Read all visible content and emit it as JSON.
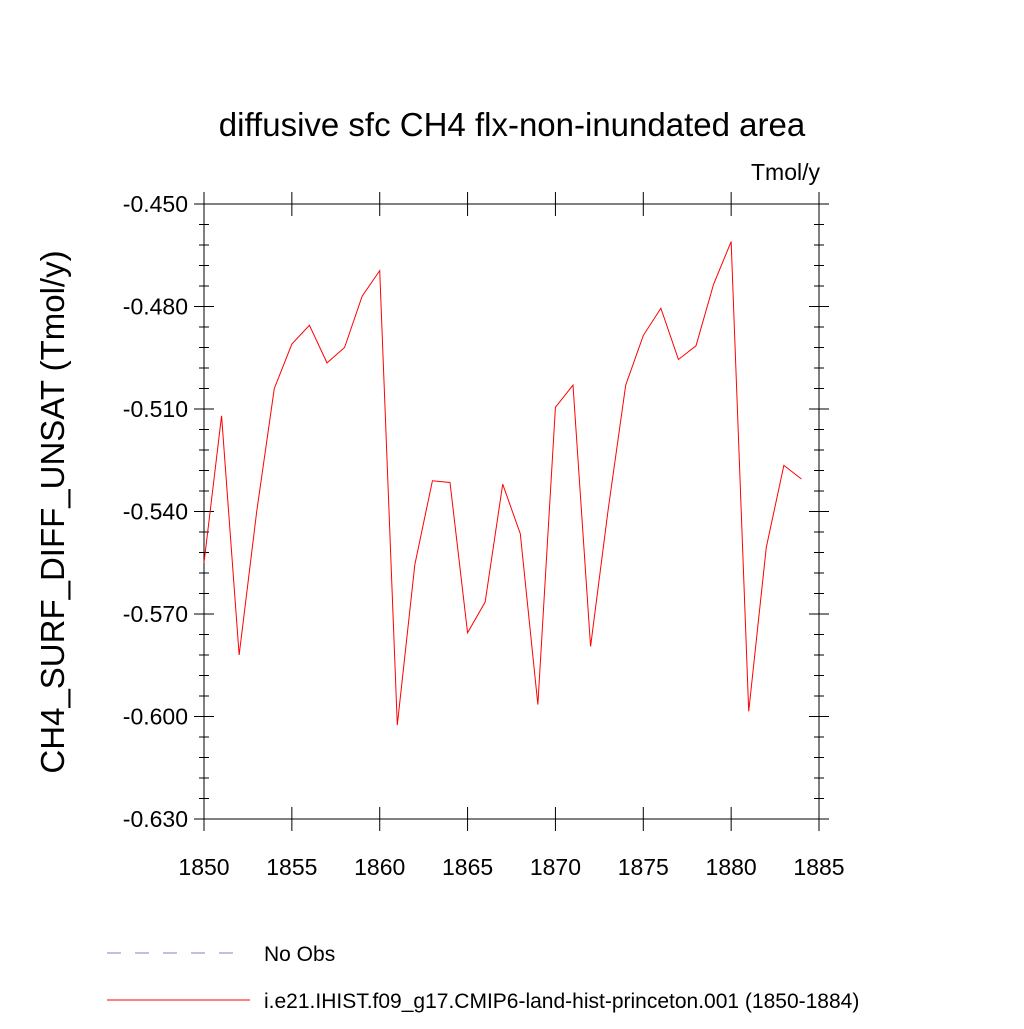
{
  "chart_data": {
    "type": "line",
    "title": "diffusive sfc CH4 flx-non-inundated area",
    "units_label": "Tmol/y",
    "ylabel": "CH4_SURF_DIFF_UNSAT  (Tmol/y)",
    "xlabel": "",
    "xlim": [
      1850,
      1885
    ],
    "ylim": [
      -0.63,
      -0.45
    ],
    "xticks": [
      1850,
      1855,
      1860,
      1865,
      1870,
      1875,
      1880,
      1885
    ],
    "xtick_labels": [
      "1850",
      "1855",
      "1860",
      "1865",
      "1870",
      "1875",
      "1880",
      "1885"
    ],
    "yticks": [
      -0.45,
      -0.48,
      -0.51,
      -0.54,
      -0.57,
      -0.6,
      -0.63
    ],
    "ytick_labels": [
      "-0.450",
      "-0.480",
      "-0.510",
      "-0.540",
      "-0.570",
      "-0.600",
      "-0.630"
    ],
    "grid": false,
    "legend_position": "bottom",
    "series": [
      {
        "name": "i.e21.IHIST.f09_g17.CMIP6-land-hist-princeton.001 (1850-1884)",
        "color": "#ff0000",
        "style": "solid",
        "x": [
          1850,
          1851,
          1852,
          1853,
          1854,
          1855,
          1856,
          1857,
          1858,
          1859,
          1860,
          1861,
          1862,
          1863,
          1864,
          1865,
          1866,
          1867,
          1868,
          1869,
          1870,
          1871,
          1872,
          1873,
          1874,
          1875,
          1876,
          1877,
          1878,
          1879,
          1880,
          1881,
          1882,
          1883,
          1884
        ],
        "values": [
          -0.555,
          -0.512,
          -0.582,
          -0.54,
          -0.504,
          -0.491,
          -0.4855,
          -0.4965,
          -0.492,
          -0.477,
          -0.4695,
          -0.6025,
          -0.5555,
          -0.531,
          -0.5315,
          -0.5755,
          -0.5665,
          -0.532,
          -0.5465,
          -0.5965,
          -0.5095,
          -0.503,
          -0.5795,
          -0.5395,
          -0.503,
          -0.4885,
          -0.4805,
          -0.4955,
          -0.4915,
          -0.4735,
          -0.461,
          -0.5985,
          -0.5505,
          -0.5265,
          -0.5305
        ]
      },
      {
        "name": "No Obs",
        "color": "#8080c0",
        "style": "dashed",
        "x": [],
        "values": []
      }
    ]
  }
}
